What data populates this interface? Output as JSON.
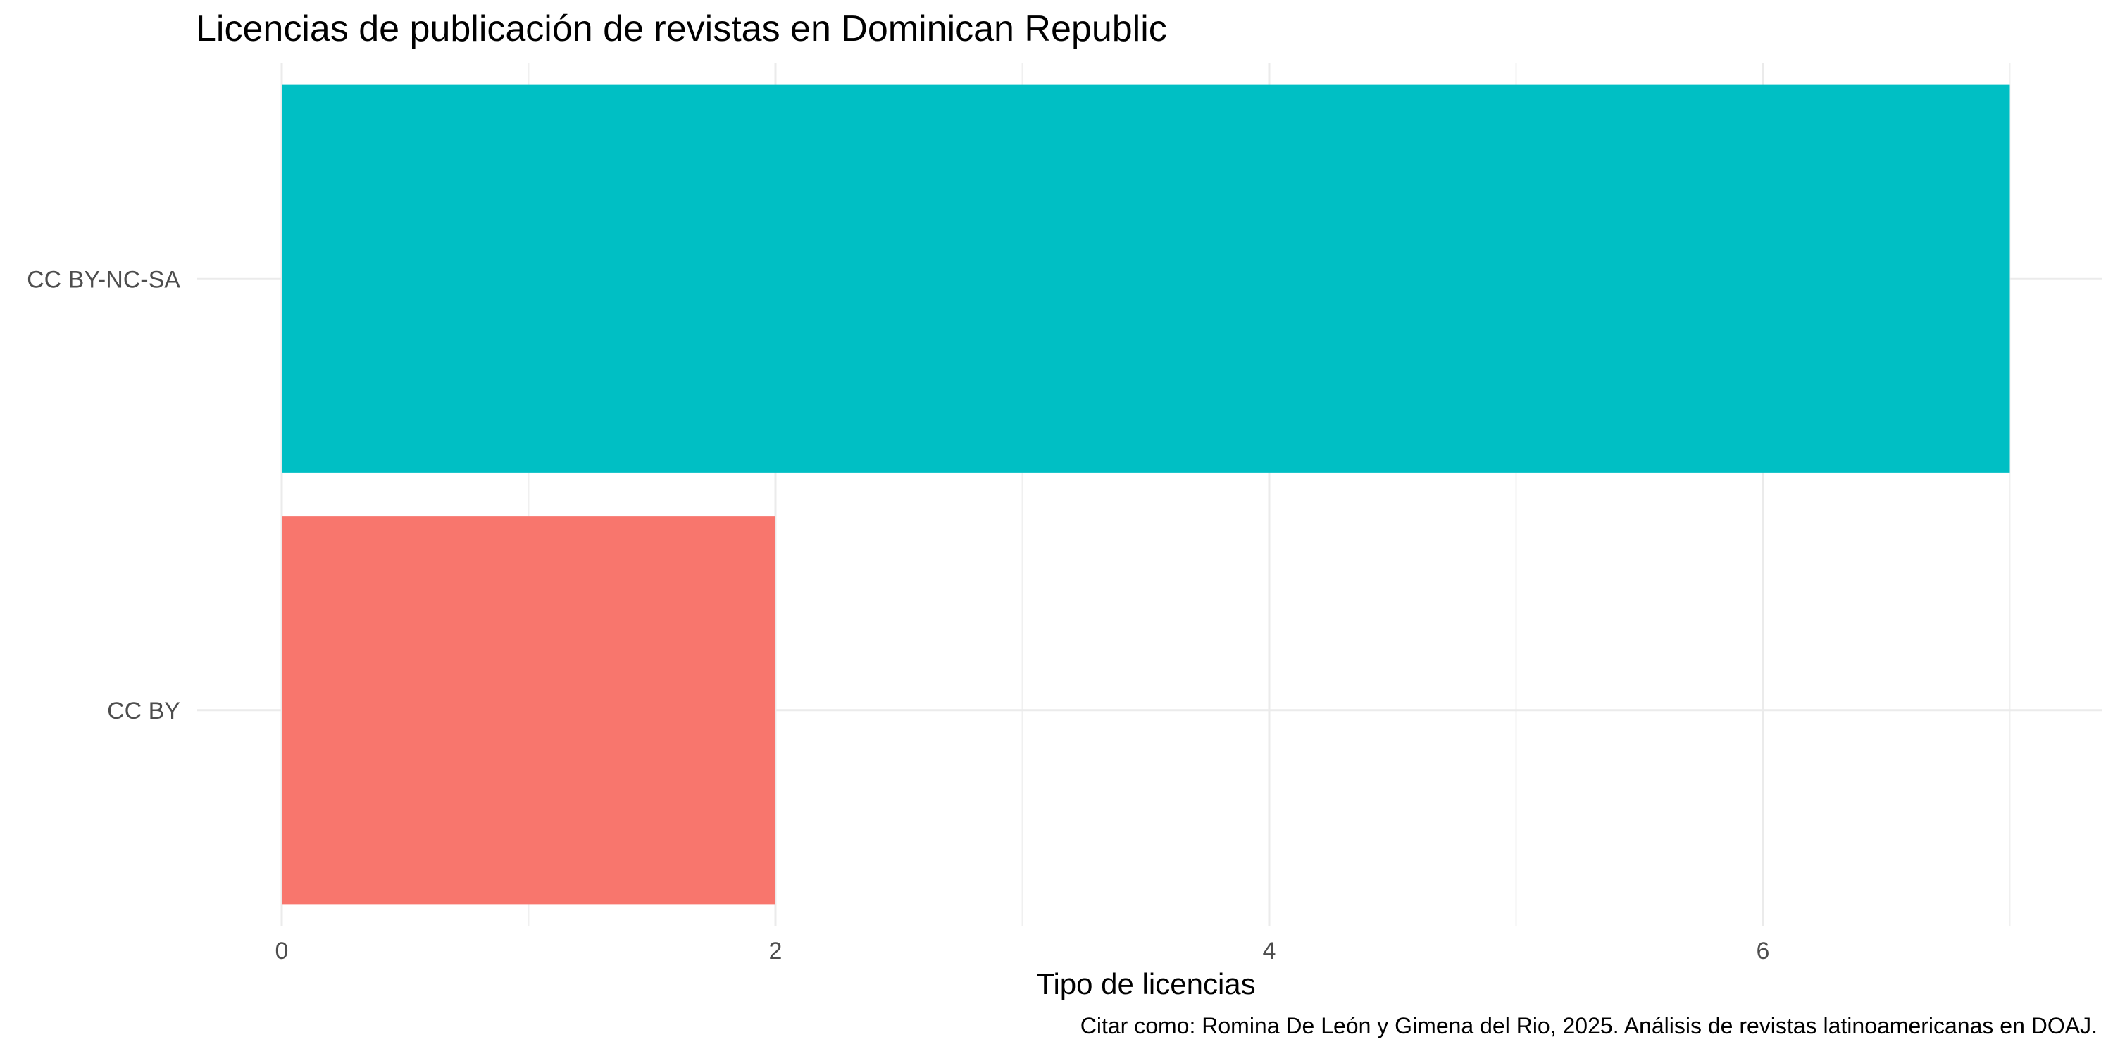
{
  "chart_data": {
    "type": "bar",
    "orientation": "horizontal",
    "title": "Licencias de publicación de revistas en Dominican Republic",
    "xlabel": "Tipo de licencias",
    "ylabel": "",
    "caption": "Citar como: Romina De León y Gimena del Rio, 2025. Análisis de revistas latinoamericanas en DOAJ.",
    "categories": [
      "CC BY",
      "CC BY-NC-SA"
    ],
    "values": [
      2,
      7
    ],
    "colors": [
      "#F8766D",
      "#00BFC4"
    ],
    "xlim": [
      0,
      7
    ],
    "x_ticks": [
      0,
      2,
      4,
      6
    ],
    "x_tick_labels": [
      "0",
      "2",
      "4",
      "6"
    ],
    "grid": true,
    "legend": "none"
  }
}
